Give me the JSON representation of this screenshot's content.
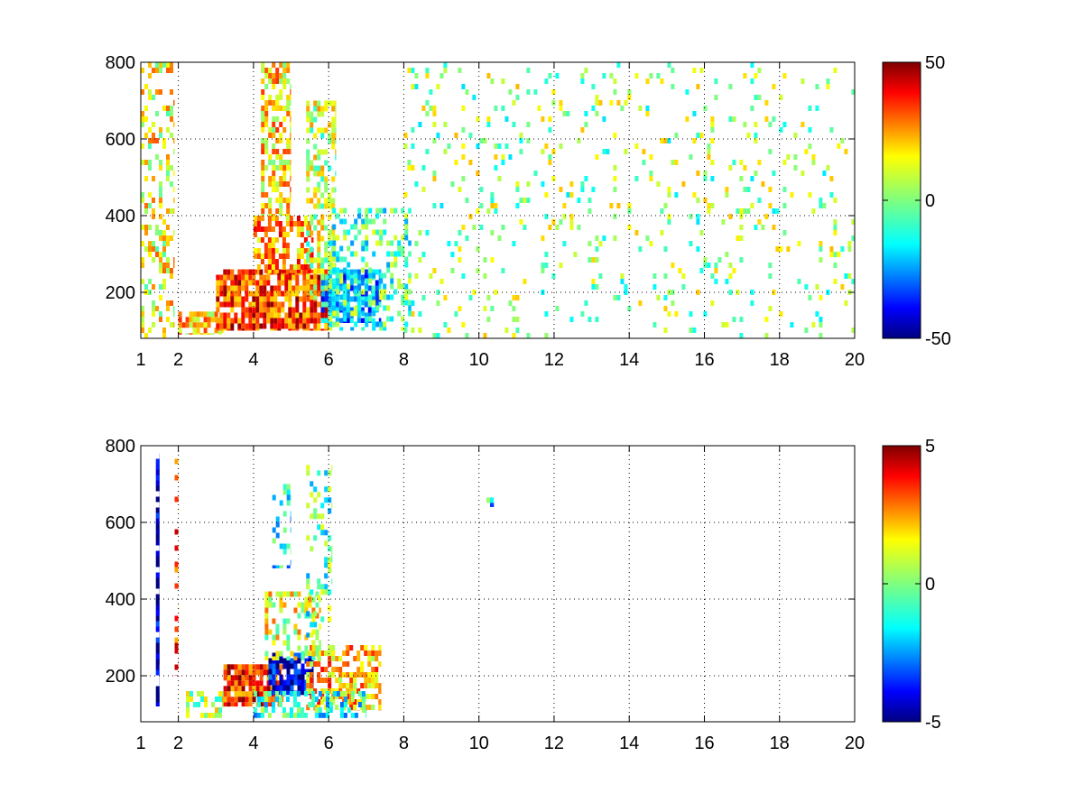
{
  "chart_data": [
    {
      "type": "heatmap",
      "title": "",
      "xlabel": "",
      "ylabel": "",
      "xlim": [
        1,
        20
      ],
      "ylim": [
        80,
        800
      ],
      "xticks": [
        1,
        2,
        4,
        6,
        8,
        10,
        12,
        14,
        16,
        18,
        20
      ],
      "yticks": [
        200,
        400,
        600,
        800
      ],
      "grid": true,
      "colormap": "jet",
      "colorbar": {
        "min": -50,
        "max": 50,
        "ticks": [
          50,
          0,
          -50
        ]
      },
      "regions": [
        {
          "x": [
            1.0,
            1.9
          ],
          "y": [
            80,
            800
          ],
          "value": 12,
          "density": 0.35
        },
        {
          "x": [
            2.0,
            3.2
          ],
          "y": [
            90,
            150
          ],
          "value": 18,
          "density": 0.7
        },
        {
          "x": [
            3.0,
            6.0
          ],
          "y": [
            100,
            260
          ],
          "value": 32,
          "density": 0.85
        },
        {
          "x": [
            4.2,
            5.0
          ],
          "y": [
            400,
            800
          ],
          "value": 16,
          "density": 0.6
        },
        {
          "x": [
            4.0,
            5.6
          ],
          "y": [
            250,
            400
          ],
          "value": 24,
          "density": 0.6
        },
        {
          "x": [
            5.4,
            6.2
          ],
          "y": [
            180,
            700
          ],
          "value": 6,
          "density": 0.55
        },
        {
          "x": [
            5.8,
            7.4
          ],
          "y": [
            120,
            260
          ],
          "value": -22,
          "density": 0.7
        },
        {
          "x": [
            6.0,
            8.2
          ],
          "y": [
            100,
            420
          ],
          "value": -6,
          "density": 0.35
        },
        {
          "x": [
            8.0,
            20.0
          ],
          "y": [
            80,
            800
          ],
          "value": 2,
          "density": 0.08
        }
      ]
    },
    {
      "type": "heatmap",
      "title": "",
      "xlabel": "",
      "ylabel": "",
      "xlim": [
        1,
        20
      ],
      "ylim": [
        80,
        800
      ],
      "xticks": [
        1,
        2,
        4,
        6,
        8,
        10,
        12,
        14,
        16,
        18,
        20
      ],
      "yticks": [
        200,
        400,
        600,
        800
      ],
      "grid": true,
      "colormap": "jet",
      "colorbar": {
        "min": -5,
        "max": 5,
        "ticks": [
          5,
          0,
          -5
        ]
      },
      "regions": [
        {
          "x": [
            1.4,
            1.5
          ],
          "y": [
            120,
            780
          ],
          "value": -4.5,
          "density": 0.9
        },
        {
          "x": [
            1.9,
            2.0
          ],
          "y": [
            200,
            780
          ],
          "value": 3,
          "density": 0.3
        },
        {
          "x": [
            2.2,
            3.2
          ],
          "y": [
            90,
            160
          ],
          "value": 0.5,
          "density": 0.5
        },
        {
          "x": [
            3.2,
            4.8
          ],
          "y": [
            120,
            230
          ],
          "value": 3.5,
          "density": 0.85
        },
        {
          "x": [
            4.4,
            5.6
          ],
          "y": [
            150,
            260
          ],
          "value": -4,
          "density": 0.75
        },
        {
          "x": [
            5.4,
            7.4
          ],
          "y": [
            110,
            280
          ],
          "value": 2,
          "density": 0.6
        },
        {
          "x": [
            4.0,
            7.0
          ],
          "y": [
            90,
            160
          ],
          "value": -1,
          "density": 0.5
        },
        {
          "x": [
            4.3,
            5.8
          ],
          "y": [
            240,
            420
          ],
          "value": 1,
          "density": 0.45
        },
        {
          "x": [
            4.5,
            5.0
          ],
          "y": [
            480,
            700
          ],
          "value": -1.5,
          "density": 0.35
        },
        {
          "x": [
            5.4,
            6.1
          ],
          "y": [
            300,
            750
          ],
          "value": -0.5,
          "density": 0.3
        },
        {
          "x": [
            10.2,
            10.4
          ],
          "y": [
            640,
            665
          ],
          "value": -1.5,
          "density": 0.8
        }
      ]
    }
  ]
}
